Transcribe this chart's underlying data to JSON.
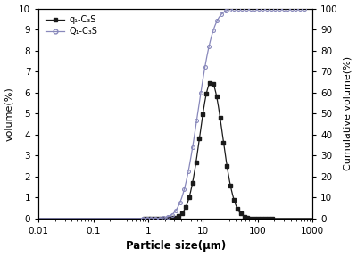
{
  "title": "",
  "xlabel": "Particle size(μm)",
  "ylabel_left": "volume(%)",
  "ylabel_right": "Cumulative volume(%)",
  "legend_q": "q₁-C₃S",
  "legend_Q": "Q₁-C₃S",
  "xlim_log": [
    0.01,
    1000
  ],
  "ylim_left": [
    0,
    10
  ],
  "ylim_right": [
    0,
    100
  ],
  "background_color": "#ffffff",
  "line_color_q": "#1a1a1a",
  "line_color_Q": "#8888bb",
  "q_mu_log": 1.15,
  "q_sigma": 0.48,
  "q_peak_scale": 6.5,
  "Q_mu_log": 1.55,
  "Q_sigma": 0.52
}
